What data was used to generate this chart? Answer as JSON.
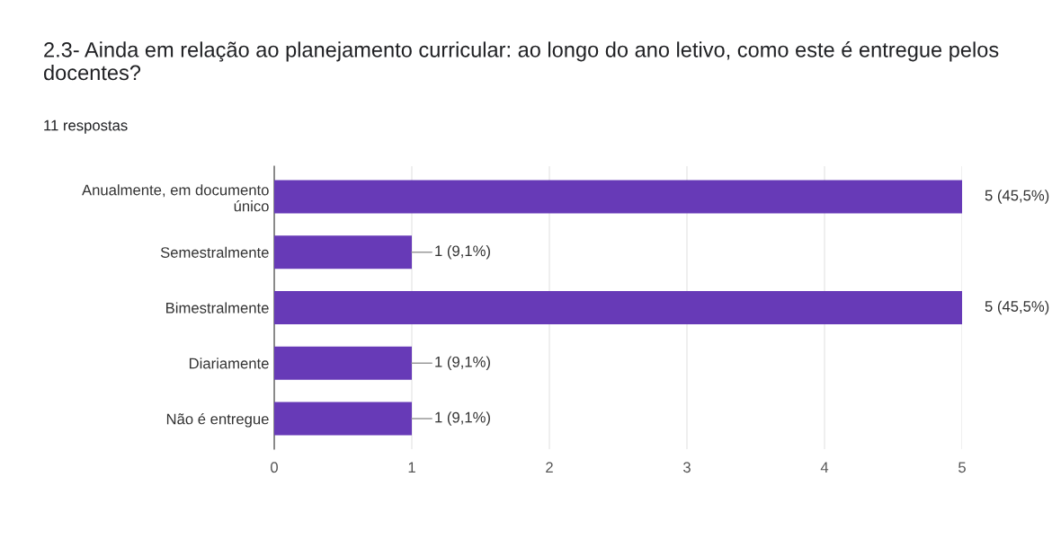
{
  "chart_data": {
    "type": "bar",
    "orientation": "horizontal",
    "title": "2.3- Ainda em relação ao planejamento curricular: ao longo do ano letivo, como este é entregue pelos docentes?",
    "subtitle": "11 respostas",
    "categories": [
      "Anualmente, em documento\núnico",
      "Semestralmente",
      "Bimestralmente",
      "Diariamente",
      "Não é entregue"
    ],
    "values": [
      5,
      1,
      5,
      1,
      1
    ],
    "value_labels": [
      "5 (45,5%)",
      "1 (9,1%)",
      "5 (45,5%)",
      "1 (9,1%)",
      "1 (9,1%)"
    ],
    "color": "#673ab7",
    "xlim": [
      0,
      5
    ],
    "xticks": [
      0,
      1,
      2,
      3,
      4,
      5
    ],
    "grid": "x"
  }
}
